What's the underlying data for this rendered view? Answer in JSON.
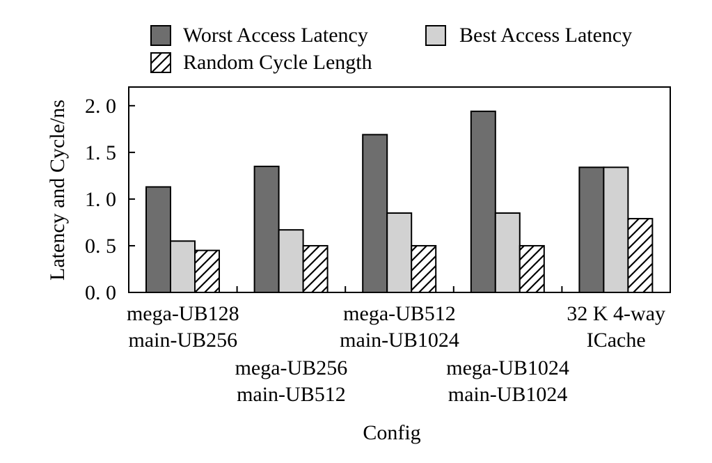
{
  "chart_data": {
    "type": "bar",
    "xlabel": "Config",
    "ylabel": "Latency and Cycle/ns",
    "ylim": [
      0,
      2.2
    ],
    "yticks": [
      "0. 0",
      "0. 5",
      "1. 0",
      "1. 5",
      "2. 0"
    ],
    "ytick_values": [
      0,
      0.5,
      1.0,
      1.5,
      2.0
    ],
    "grid": false,
    "legend_position": "top",
    "categories": [
      {
        "line1": "mega-UB128",
        "line2": "main-UB256"
      },
      {
        "line1": "mega-UB256",
        "line2": "main-UB512"
      },
      {
        "line1": "mega-UB512",
        "line2": "main-UB1024"
      },
      {
        "line1": "mega-UB1024",
        "line2": "main-UB1024"
      },
      {
        "line1": "32 K 4-way",
        "line2": "ICache"
      }
    ],
    "series": [
      {
        "name": "Worst Access Latency",
        "color": "#6e6e6e",
        "pattern": "solid",
        "values": [
          1.13,
          1.35,
          1.69,
          1.94,
          1.34
        ]
      },
      {
        "name": "Best Access Latency",
        "color": "#d2d2d2",
        "pattern": "solid",
        "values": [
          0.55,
          0.67,
          0.85,
          0.85,
          1.34
        ]
      },
      {
        "name": "Random Cycle Length",
        "color": "#ffffff",
        "pattern": "hatch",
        "values": [
          0.45,
          0.5,
          0.5,
          0.5,
          0.79
        ]
      }
    ]
  }
}
